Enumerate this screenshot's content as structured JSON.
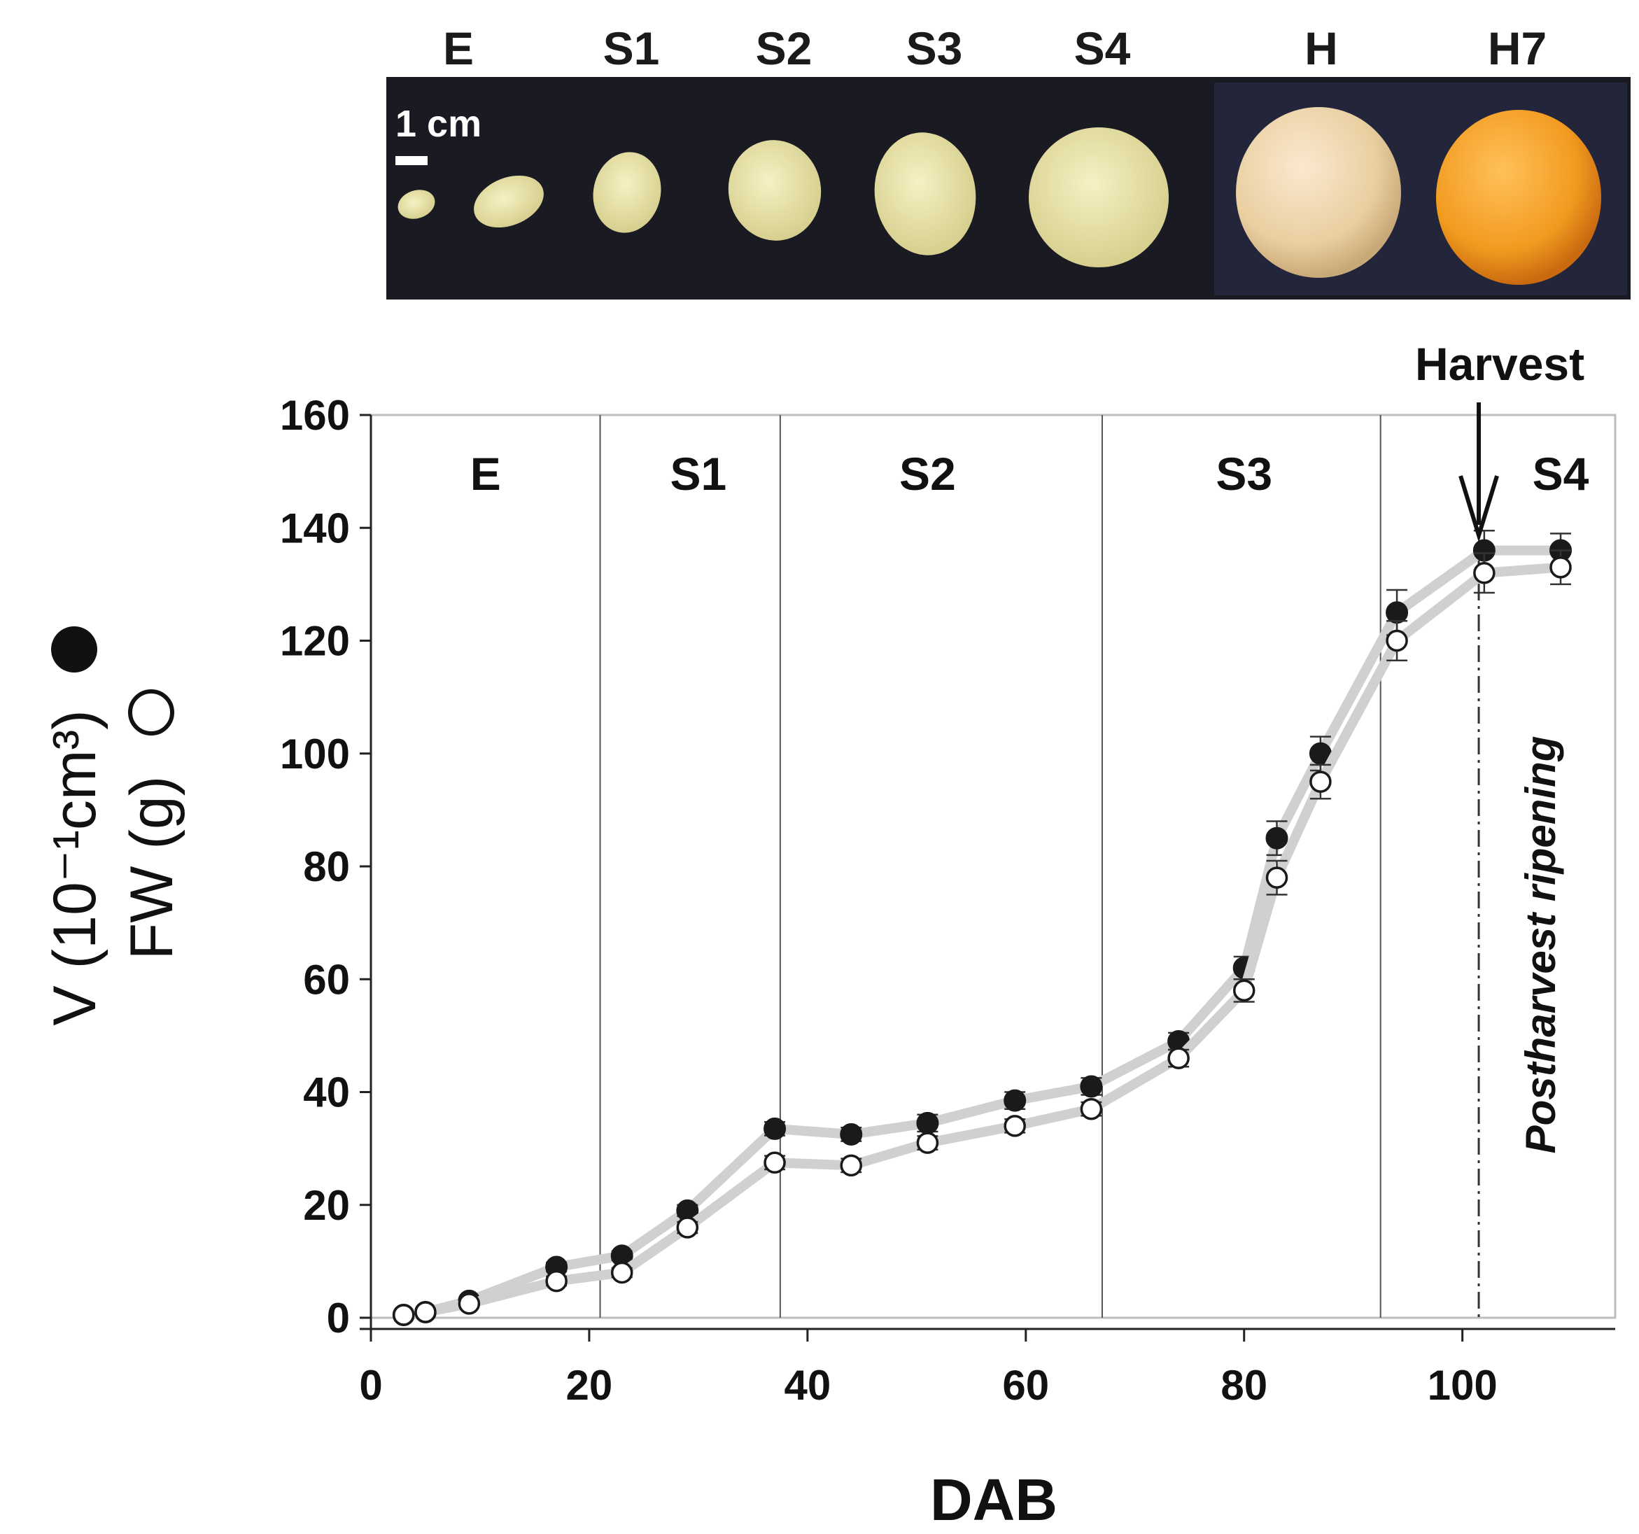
{
  "photo_strip": {
    "labels": [
      "E",
      "S1",
      "S2",
      "S3",
      "S4",
      "H",
      "H7"
    ],
    "scale_bar_label": "1 cm",
    "background_color": "#1a1a22"
  },
  "chart_data": {
    "type": "scatter",
    "xlabel": "DAB",
    "ylabel_line1": "V (10⁻¹cm³)",
    "ylabel_line2": "FW (g)",
    "xlim": [
      0,
      114
    ],
    "ylim": [
      0,
      160
    ],
    "x_ticks": [
      0,
      20,
      40,
      60,
      80,
      100
    ],
    "y_ticks": [
      0,
      20,
      40,
      60,
      80,
      100,
      120,
      140,
      160
    ],
    "grid": false,
    "stage_boundaries": [
      21,
      37.5,
      67,
      92.5
    ],
    "stage_labels": [
      {
        "label": "E",
        "x": 10.5
      },
      {
        "label": "S1",
        "x": 30
      },
      {
        "label": "S2",
        "x": 51
      },
      {
        "label": "S3",
        "x": 80
      },
      {
        "label": "S4",
        "x": 109
      }
    ],
    "harvest": {
      "label": "Harvest",
      "x": 101.5
    },
    "postharvest_label": "Postharvest ripening",
    "series": [
      {
        "key": "volume",
        "marker": "filled-circle",
        "line_color": "#d0d0d0",
        "points": [
          {
            "x": 3,
            "y": 0.5,
            "err": 0
          },
          {
            "x": 5,
            "y": 1,
            "err": 0
          },
          {
            "x": 9,
            "y": 3,
            "err": 0
          },
          {
            "x": 17,
            "y": 9,
            "err": 0.8
          },
          {
            "x": 23,
            "y": 11,
            "err": 0.8
          },
          {
            "x": 29,
            "y": 19,
            "err": 1
          },
          {
            "x": 37,
            "y": 33.5,
            "err": 1.2
          },
          {
            "x": 44,
            "y": 32.5,
            "err": 1.2
          },
          {
            "x": 51,
            "y": 34.5,
            "err": 1.5
          },
          {
            "x": 59,
            "y": 38.5,
            "err": 1.5
          },
          {
            "x": 66,
            "y": 41,
            "err": 1.5
          },
          {
            "x": 74,
            "y": 49,
            "err": 1.5
          },
          {
            "x": 80,
            "y": 62,
            "err": 2
          },
          {
            "x": 83,
            "y": 85,
            "err": 3
          },
          {
            "x": 87,
            "y": 100,
            "err": 3
          },
          {
            "x": 94,
            "y": 125,
            "err": 4
          },
          {
            "x": 102,
            "y": 136,
            "err": 3.5
          },
          {
            "x": 109,
            "y": 136,
            "err": 3
          }
        ]
      },
      {
        "key": "fresh_weight",
        "marker": "open-circle",
        "line_color": "#d0d0d0",
        "points": [
          {
            "x": 3,
            "y": 0.5,
            "err": 0
          },
          {
            "x": 5,
            "y": 1,
            "err": 0
          },
          {
            "x": 9,
            "y": 2.5,
            "err": 0
          },
          {
            "x": 17,
            "y": 6.5,
            "err": 0.8
          },
          {
            "x": 23,
            "y": 8,
            "err": 0.8
          },
          {
            "x": 29,
            "y": 16,
            "err": 1
          },
          {
            "x": 37,
            "y": 27.5,
            "err": 1.2
          },
          {
            "x": 44,
            "y": 27,
            "err": 1.2
          },
          {
            "x": 51,
            "y": 31,
            "err": 1.2
          },
          {
            "x": 59,
            "y": 34,
            "err": 1.2
          },
          {
            "x": 66,
            "y": 37,
            "err": 1.2
          },
          {
            "x": 74,
            "y": 46,
            "err": 1.5
          },
          {
            "x": 80,
            "y": 58,
            "err": 2
          },
          {
            "x": 83,
            "y": 78,
            "err": 3
          },
          {
            "x": 87,
            "y": 95,
            "err": 3
          },
          {
            "x": 94,
            "y": 120,
            "err": 3.5
          },
          {
            "x": 102,
            "y": 132,
            "err": 3.5
          },
          {
            "x": 109,
            "y": 133,
            "err": 3
          }
        ]
      }
    ]
  }
}
